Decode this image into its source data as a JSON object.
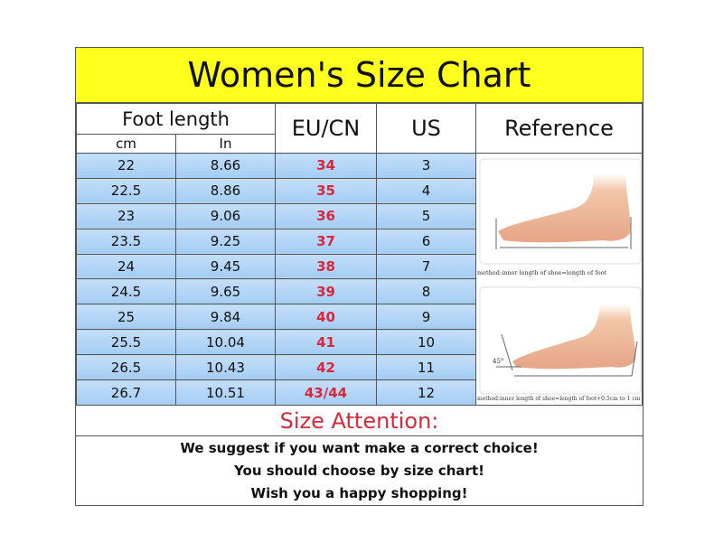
{
  "title": "Women's Size Chart",
  "header": {
    "foot_length": "Foot length",
    "cm": "cm",
    "in": "In",
    "eu_cn": "EU/CN",
    "us": "US",
    "reference": "Reference"
  },
  "rows": [
    {
      "cm": "22",
      "in": "8.66",
      "eu": "34",
      "us": "3"
    },
    {
      "cm": "22.5",
      "in": "8.86",
      "eu": "35",
      "us": "4"
    },
    {
      "cm": "23",
      "in": "9.06",
      "eu": "36",
      "us": "5"
    },
    {
      "cm": "23.5",
      "in": "9.25",
      "eu": "37",
      "us": "6"
    },
    {
      "cm": "24",
      "in": "9.45",
      "eu": "38",
      "us": "7"
    },
    {
      "cm": "24.5",
      "in": "9.65",
      "eu": "39",
      "us": "8"
    },
    {
      "cm": "25",
      "in": "9.84",
      "eu": "40",
      "us": "9"
    },
    {
      "cm": "25.5",
      "in": "10.04",
      "eu": "41",
      "us": "10"
    },
    {
      "cm": "26.5",
      "in": "10.43",
      "eu": "42",
      "us": "11"
    },
    {
      "cm": "26.7",
      "in": "10.51",
      "eu": "43/44",
      "us": "12"
    }
  ],
  "reference": {
    "caption_1": "method:inner length of shoe=length of foot",
    "caption_2": "method:inner length of shoe=length of foot+0.5cm to 1 cm",
    "angle_label": "45°"
  },
  "attention": {
    "heading": "Size Attention:",
    "lines": [
      "We suggest if you want make a correct choice!",
      "You should choose by size chart!",
      "Wish you a happy shopping!"
    ]
  },
  "colors": {
    "title_bg": "#ffff1e",
    "cell_bg": "#a8d0f5",
    "eu_text": "#d8283c",
    "attention_text": "#d8283c"
  }
}
